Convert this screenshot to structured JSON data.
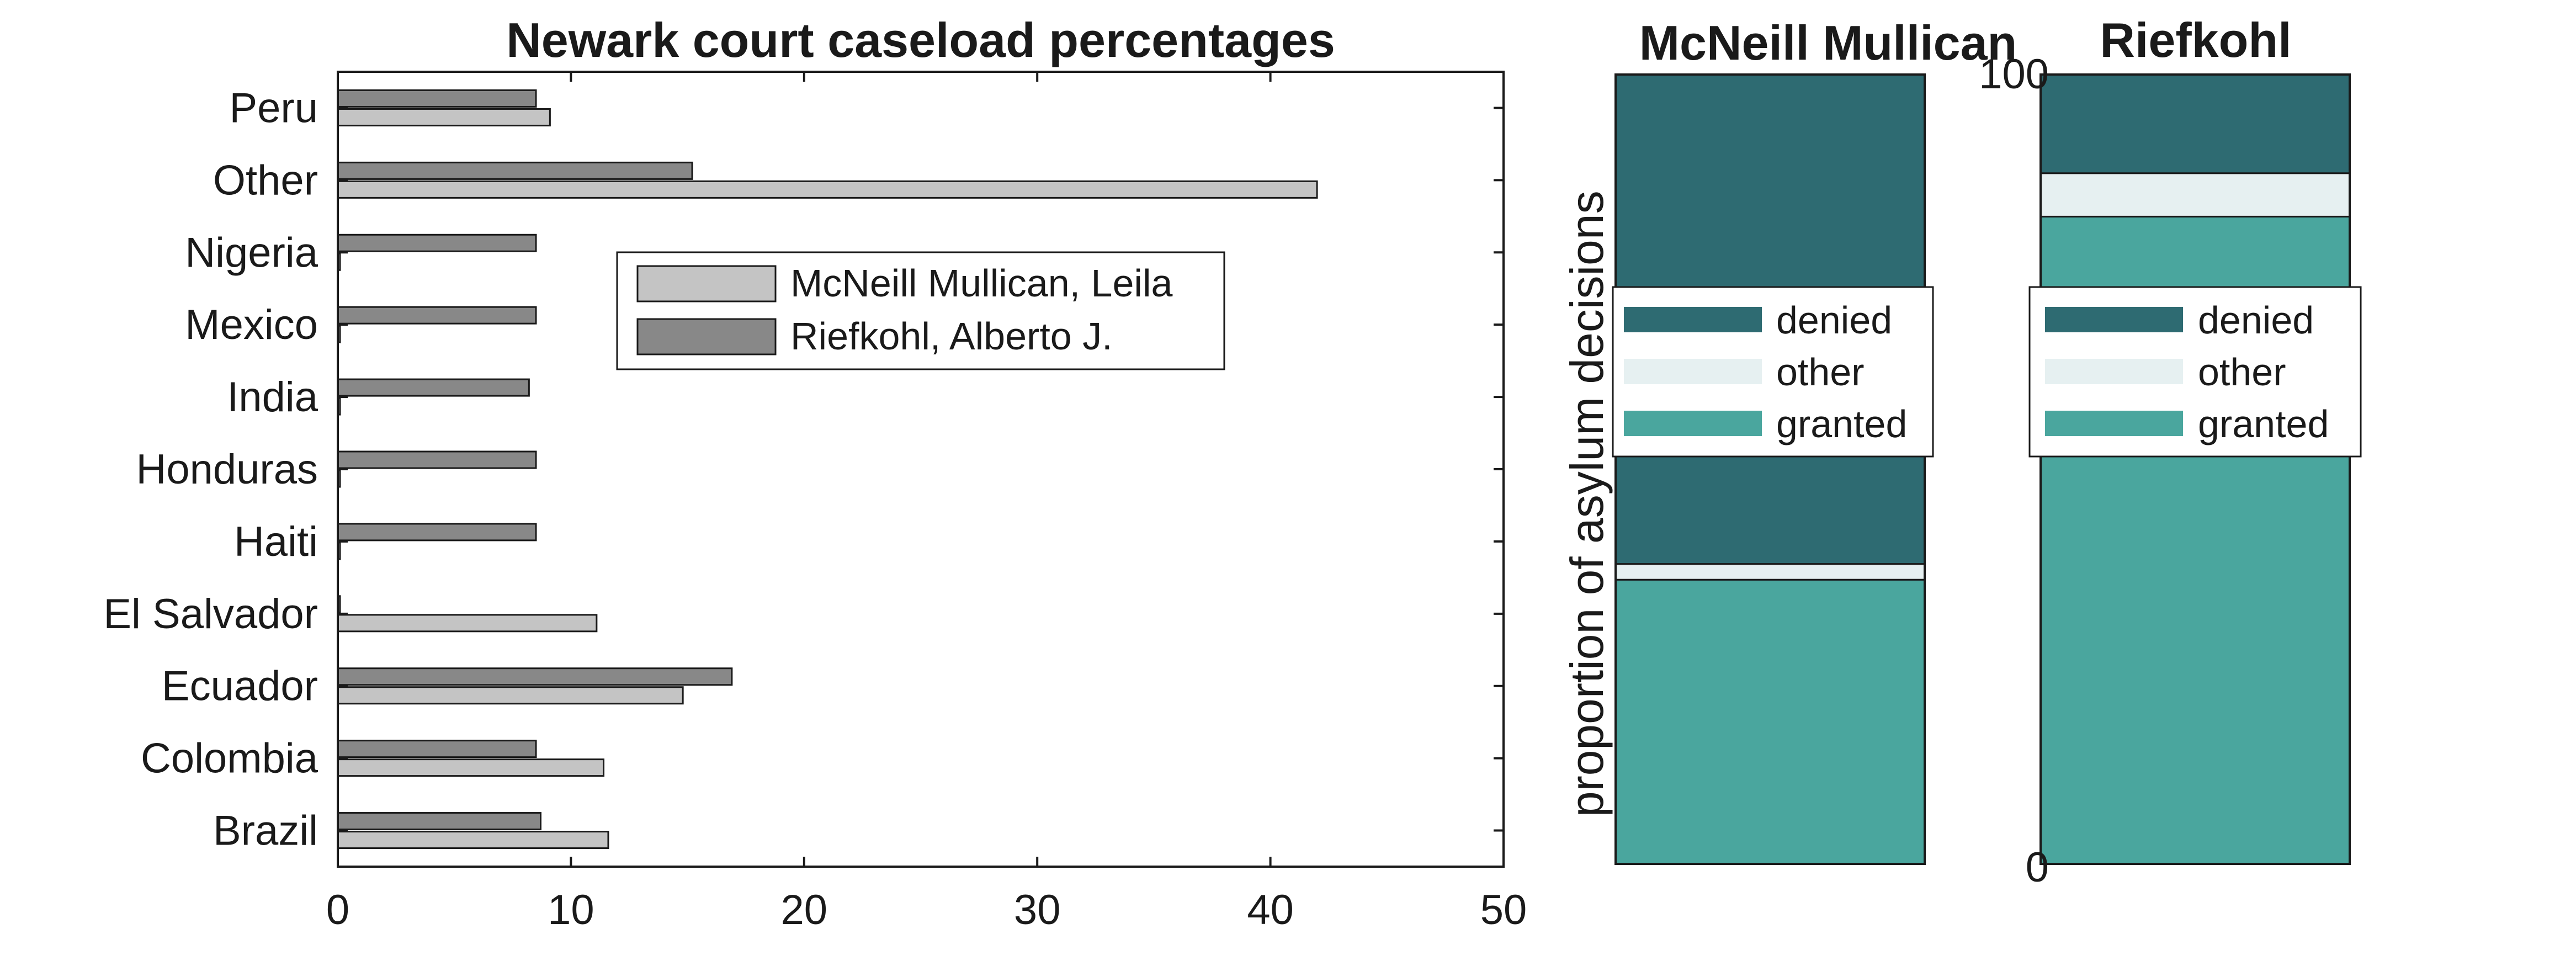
{
  "colors": {
    "mcneill_bar": "#c4c4c4",
    "riefkohl_bar": "#888888",
    "denied": "#2e6b72",
    "other": "#e6f0f1",
    "granted": "#4aa69e",
    "axis": "#1a1a1a"
  },
  "chart_data": [
    {
      "type": "bar",
      "orientation": "horizontal",
      "title": "Newark court caseload percentages",
      "categories": [
        "Peru",
        "Other",
        "Nigeria",
        "Mexico",
        "India",
        "Honduras",
        "Haiti",
        "El Salvador",
        "Ecuador",
        "Colombia",
        "Brazil"
      ],
      "series": [
        {
          "name": "McNeill Mullican, Leila",
          "values": [
            9.1,
            42.0,
            0.0,
            0.0,
            0.0,
            0.0,
            0.0,
            11.1,
            14.8,
            11.4,
            11.6
          ]
        },
        {
          "name": "Riefkohl, Alberto J.",
          "values": [
            8.5,
            15.2,
            8.5,
            8.5,
            8.2,
            8.5,
            8.5,
            0.0,
            16.9,
            8.5,
            8.7
          ]
        }
      ],
      "xlim": [
        0,
        50
      ],
      "xticks": [
        "0",
        "10",
        "20",
        "30",
        "40",
        "50"
      ],
      "legend": "inside-center"
    },
    {
      "type": "bar",
      "stacked": true,
      "ylabel": "proportion of asylum decisions",
      "ylim": [
        0,
        100
      ],
      "yticks": [
        "0",
        "100"
      ],
      "legend": "center",
      "legend_entries": [
        "denied",
        "other",
        "granted"
      ],
      "panels": [
        {
          "title": "McNeill Mullican",
          "granted": 36,
          "other": 2,
          "denied": 62
        },
        {
          "title": "Riefkohl",
          "granted": 82,
          "other": 5.5,
          "denied": 12.5
        }
      ]
    }
  ]
}
